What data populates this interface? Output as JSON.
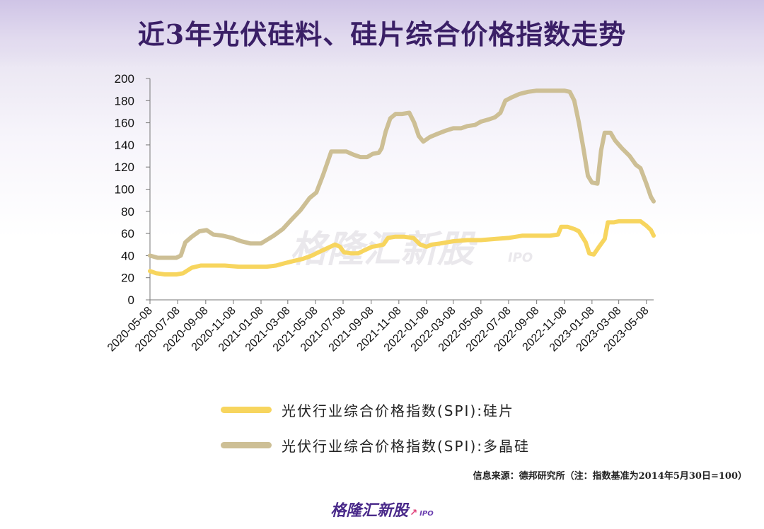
{
  "title": "近3年光伏硅料、硅片综合价格指数走势",
  "source": "信息来源：德邦研究所（注：指数基准为2014年5月30日=100）",
  "watermark": {
    "brand": "格隆汇新股",
    "suffix": "IPO"
  },
  "footer": {
    "brand": "格隆汇新股",
    "suffix": "IPO"
  },
  "colors": {
    "polysilicon": "#cdbf95",
    "wafer": "#f7d55e",
    "axis": "#777777",
    "title": "#3a1f66"
  },
  "chart_data": {
    "type": "line",
    "title": "",
    "xlabel": "",
    "ylabel": "",
    "ylim": [
      0,
      200
    ],
    "yticks": [
      0,
      20,
      40,
      60,
      80,
      100,
      120,
      140,
      160,
      180,
      200
    ],
    "xticks": [
      "2020-05-08",
      "2020-07-08",
      "2020-09-08",
      "2020-11-08",
      "2021-01-08",
      "2021-03-08",
      "2021-05-08",
      "2021-07-08",
      "2021-09-08",
      "2021-11-08",
      "2022-01-08",
      "2022-03-08",
      "2022-05-08",
      "2022-07-08",
      "2022-09-08",
      "2022-11-08",
      "2023-01-08",
      "2023-03-08",
      "2023-05-08"
    ],
    "grid": false,
    "legend": "bottom",
    "series": [
      {
        "name": "光伏行业综合价格指数(SPI):硅片",
        "color": "#f7d55e",
        "points": [
          [
            "2020-05-08",
            26
          ],
          [
            "2020-05-22",
            24
          ],
          [
            "2020-06-10",
            23
          ],
          [
            "2020-07-05",
            23
          ],
          [
            "2020-07-20",
            24
          ],
          [
            "2020-08-08",
            29
          ],
          [
            "2020-08-28",
            31
          ],
          [
            "2020-09-20",
            31
          ],
          [
            "2020-10-20",
            31
          ],
          [
            "2020-11-20",
            30
          ],
          [
            "2020-12-20",
            30
          ],
          [
            "2021-01-20",
            30
          ],
          [
            "2021-02-10",
            31
          ],
          [
            "2021-02-28",
            33
          ],
          [
            "2021-03-20",
            35
          ],
          [
            "2021-04-10",
            37
          ],
          [
            "2021-04-30",
            40
          ],
          [
            "2021-05-20",
            44
          ],
          [
            "2021-06-05",
            47
          ],
          [
            "2021-06-20",
            50
          ],
          [
            "2021-07-01",
            48
          ],
          [
            "2021-07-10",
            43
          ],
          [
            "2021-07-25",
            42
          ],
          [
            "2021-08-10",
            42
          ],
          [
            "2021-08-25",
            45
          ],
          [
            "2021-09-10",
            48
          ],
          [
            "2021-09-25",
            49
          ],
          [
            "2021-10-05",
            50
          ],
          [
            "2021-10-15",
            56
          ],
          [
            "2021-10-30",
            57
          ],
          [
            "2021-11-20",
            57
          ],
          [
            "2021-12-10",
            56
          ],
          [
            "2021-12-25",
            50
          ],
          [
            "2022-01-08",
            48
          ],
          [
            "2022-01-20",
            50
          ],
          [
            "2022-02-08",
            51
          ],
          [
            "2022-03-08",
            53
          ],
          [
            "2022-04-08",
            54
          ],
          [
            "2022-05-08",
            54
          ],
          [
            "2022-06-08",
            55
          ],
          [
            "2022-07-08",
            56
          ],
          [
            "2022-08-08",
            58
          ],
          [
            "2022-09-08",
            58
          ],
          [
            "2022-10-08",
            58
          ],
          [
            "2022-10-25",
            59
          ],
          [
            "2022-11-01",
            66
          ],
          [
            "2022-11-15",
            66
          ],
          [
            "2022-11-30",
            64
          ],
          [
            "2022-12-10",
            62
          ],
          [
            "2022-12-25",
            52
          ],
          [
            "2023-01-02",
            42
          ],
          [
            "2023-01-12",
            41
          ],
          [
            "2023-01-22",
            47
          ],
          [
            "2023-02-05",
            55
          ],
          [
            "2023-02-12",
            70
          ],
          [
            "2023-02-25",
            70
          ],
          [
            "2023-03-08",
            71
          ],
          [
            "2023-04-01",
            71
          ],
          [
            "2023-04-25",
            71
          ],
          [
            "2023-05-08",
            67
          ],
          [
            "2023-05-18",
            63
          ],
          [
            "2023-05-24",
            58
          ]
        ]
      },
      {
        "name": "光伏行业综合价格指数(SPI):多晶硅",
        "color": "#cdbf95",
        "points": [
          [
            "2020-05-08",
            40
          ],
          [
            "2020-05-25",
            38
          ],
          [
            "2020-06-15",
            38
          ],
          [
            "2020-07-05",
            38
          ],
          [
            "2020-07-15",
            40
          ],
          [
            "2020-07-25",
            52
          ],
          [
            "2020-08-08",
            57
          ],
          [
            "2020-08-25",
            62
          ],
          [
            "2020-09-10",
            63
          ],
          [
            "2020-09-25",
            59
          ],
          [
            "2020-10-15",
            58
          ],
          [
            "2020-11-05",
            56
          ],
          [
            "2020-11-25",
            53
          ],
          [
            "2020-12-15",
            51
          ],
          [
            "2021-01-08",
            51
          ],
          [
            "2021-01-20",
            54
          ],
          [
            "2021-02-05",
            58
          ],
          [
            "2021-02-25",
            64
          ],
          [
            "2021-03-15",
            72
          ],
          [
            "2021-04-05",
            81
          ],
          [
            "2021-04-25",
            92
          ],
          [
            "2021-05-10",
            97
          ],
          [
            "2021-05-25",
            113
          ],
          [
            "2021-06-05",
            126
          ],
          [
            "2021-06-12",
            134
          ],
          [
            "2021-07-01",
            134
          ],
          [
            "2021-07-15",
            134
          ],
          [
            "2021-08-01",
            131
          ],
          [
            "2021-08-15",
            129
          ],
          [
            "2021-08-30",
            129
          ],
          [
            "2021-09-12",
            132
          ],
          [
            "2021-09-25",
            133
          ],
          [
            "2021-10-01",
            137
          ],
          [
            "2021-10-10",
            152
          ],
          [
            "2021-10-20",
            164
          ],
          [
            "2021-11-01",
            168
          ],
          [
            "2021-11-15",
            168
          ],
          [
            "2021-12-01",
            169
          ],
          [
            "2021-12-12",
            160
          ],
          [
            "2021-12-22",
            148
          ],
          [
            "2022-01-01",
            143
          ],
          [
            "2022-01-15",
            147
          ],
          [
            "2022-02-01",
            150
          ],
          [
            "2022-02-20",
            153
          ],
          [
            "2022-03-08",
            155
          ],
          [
            "2022-03-25",
            155
          ],
          [
            "2022-04-08",
            157
          ],
          [
            "2022-04-25",
            158
          ],
          [
            "2022-05-08",
            161
          ],
          [
            "2022-05-25",
            163
          ],
          [
            "2022-06-08",
            165
          ],
          [
            "2022-06-20",
            169
          ],
          [
            "2022-07-01",
            180
          ],
          [
            "2022-07-15",
            183
          ],
          [
            "2022-08-01",
            186
          ],
          [
            "2022-08-20",
            188
          ],
          [
            "2022-09-08",
            189
          ],
          [
            "2022-10-08",
            189
          ],
          [
            "2022-10-25",
            189
          ],
          [
            "2022-11-08",
            189
          ],
          [
            "2022-11-20",
            188
          ],
          [
            "2022-11-30",
            180
          ],
          [
            "2022-12-10",
            160
          ],
          [
            "2022-12-20",
            137
          ],
          [
            "2022-12-30",
            112
          ],
          [
            "2023-01-08",
            106
          ],
          [
            "2023-01-20",
            105
          ],
          [
            "2023-01-28",
            135
          ],
          [
            "2023-02-05",
            151
          ],
          [
            "2023-02-18",
            151
          ],
          [
            "2023-02-28",
            144
          ],
          [
            "2023-03-15",
            137
          ],
          [
            "2023-04-01",
            130
          ],
          [
            "2023-04-15",
            122
          ],
          [
            "2023-04-25",
            119
          ],
          [
            "2023-05-08",
            105
          ],
          [
            "2023-05-18",
            93
          ],
          [
            "2023-05-24",
            89
          ]
        ]
      }
    ]
  }
}
